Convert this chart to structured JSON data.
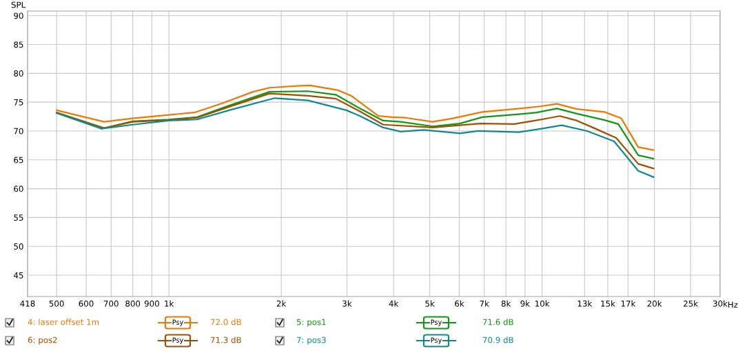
{
  "chart_data": {
    "type": "line",
    "ylabel": "SPL",
    "log": "x",
    "grid": true,
    "legend": "bottom",
    "marker": "none",
    "line_style": "solid",
    "xlim": [
      418,
      30000
    ],
    "ylim": [
      41.3,
      90.8
    ],
    "xticks": [
      418,
      500,
      600,
      700,
      800,
      900,
      {
        "value": 1000,
        "label": "1k"
      },
      {
        "value": 2000,
        "label": "2k"
      },
      {
        "value": 3000,
        "label": "3k"
      },
      {
        "value": 4000,
        "label": "4k"
      },
      {
        "value": 5000,
        "label": "5k"
      },
      {
        "value": 6000,
        "label": "6k"
      },
      {
        "value": 7000,
        "label": "7k"
      },
      {
        "value": 8000,
        "label": "8k"
      },
      {
        "value": 9000,
        "label": "9k"
      },
      {
        "value": 10000,
        "label": "10k"
      },
      {
        "value": 13000,
        "label": "13k"
      },
      {
        "value": 15000,
        "label": "15k"
      },
      {
        "value": 17000,
        "label": "17k"
      },
      {
        "value": 20000,
        "label": "20k"
      },
      {
        "value": 25000,
        "label": "25k"
      },
      {
        "value": 30000,
        "label": "30k"
      }
    ],
    "xlabel": "Hz",
    "yticks": [
      45,
      50,
      55,
      60,
      65,
      70,
      75,
      80,
      85,
      90
    ],
    "annotations": [
      "72.0 dB",
      "71.6 dB",
      "71.3 dB",
      "70.9 dB",
      "Psy"
    ],
    "series": [
      {
        "name": "4: laser offset 1m",
        "color": "#f07800",
        "x": [
          500,
          670,
          800,
          1000,
          1170,
          1390,
          1680,
          1860,
          2200,
          2390,
          2830,
          3080,
          3640,
          3960,
          4300,
          5090,
          5770,
          6910,
          8420,
          9960,
          10960,
          12400,
          14700,
          16300,
          18100,
          19900
        ],
        "values": [
          73.6,
          71.6,
          72.2,
          72.8,
          73.2,
          74.8,
          76.8,
          77.5,
          77.8,
          77.9,
          77.1,
          76.1,
          72.6,
          72.4,
          72.3,
          71.6,
          72.2,
          73.3,
          73.8,
          74.3,
          74.7,
          73.8,
          73.3,
          72.2,
          67.2,
          66.7
        ]
      },
      {
        "name": "5: pos1",
        "color": "#109810",
        "x": [
          500,
          670,
          800,
          1000,
          1190,
          1450,
          1860,
          2360,
          2800,
          3250,
          3750,
          4180,
          5090,
          6020,
          6910,
          8670,
          9670,
          10960,
          12400,
          14700,
          16000,
          18100,
          19900
        ],
        "values": [
          73.2,
          70.5,
          71.7,
          72.0,
          72.4,
          74.4,
          76.8,
          76.9,
          76.3,
          73.9,
          71.8,
          71.6,
          70.8,
          71.3,
          72.4,
          72.9,
          73.2,
          73.9,
          73.0,
          71.9,
          71.2,
          65.8,
          65.2
        ]
      },
      {
        "name": "6: pos2",
        "color": "#a04f00",
        "x": [
          500,
          670,
          800,
          1000,
          1190,
          1450,
          1860,
          2360,
          2800,
          3250,
          3750,
          5090,
          6830,
          8420,
          9960,
          11150,
          12400,
          13900,
          15800,
          18100,
          19900
        ],
        "values": [
          73.2,
          70.5,
          71.6,
          71.9,
          72.3,
          74.2,
          76.5,
          76.1,
          75.6,
          73.4,
          71.1,
          70.6,
          71.3,
          71.2,
          72.0,
          72.6,
          71.8,
          70.4,
          68.8,
          64.3,
          63.5
        ]
      },
      {
        "name": "7: pos3",
        "color": "#108890",
        "x": [
          500,
          660,
          800,
          1000,
          1190,
          1450,
          1920,
          2360,
          2990,
          3250,
          3750,
          4180,
          4820,
          6020,
          6740,
          8670,
          9960,
          11290,
          13200,
          15600,
          18100,
          19900
        ],
        "values": [
          73.1,
          70.4,
          71.1,
          71.8,
          72.0,
          73.6,
          75.7,
          75.3,
          73.6,
          72.6,
          70.6,
          69.9,
          70.2,
          69.6,
          70.0,
          69.8,
          70.4,
          71.0,
          70.0,
          68.2,
          63.1,
          62.0
        ]
      }
    ]
  }
}
